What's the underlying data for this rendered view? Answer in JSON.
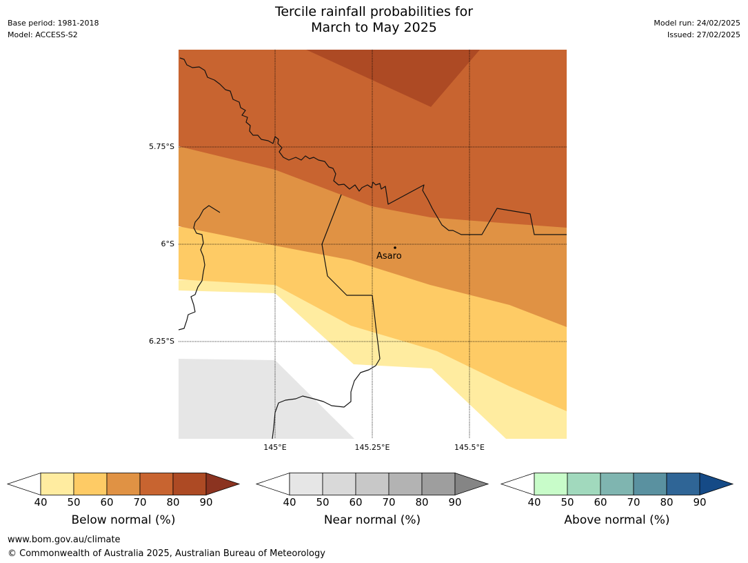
{
  "header": {
    "title_line1": "Tercile rainfall probabilities for",
    "title_line2": "March to May 2025",
    "base_period": "Base period: 1981-2018",
    "model": "Model: ACCESS-S2",
    "model_run": "Model run: 24/02/2025",
    "issued": "Issued: 27/02/2025"
  },
  "map": {
    "lat_labels": [
      "5.75°S",
      "6°S",
      "6.25°S"
    ],
    "lon_labels": [
      "145°E",
      "145.25°E",
      "145.5°E"
    ],
    "place_name": "Asaro",
    "colors": {
      "below_40_50": "#ffeca0",
      "below_50_60": "#fecb65",
      "below_60_70": "#e09244",
      "below_70_80": "#c86430",
      "below_80_90": "#ad4a24",
      "near_40_50": "#e6e6e6"
    }
  },
  "colorbars": [
    {
      "label": "Below normal (%)",
      "ticks": [
        "40",
        "50",
        "60",
        "70",
        "80",
        "90"
      ],
      "colors": [
        "#ffeca0",
        "#fecb65",
        "#e09244",
        "#c86430",
        "#ad4a24",
        "#8b3320"
      ]
    },
    {
      "label": "Near normal (%)",
      "ticks": [
        "40",
        "50",
        "60",
        "70",
        "80",
        "90"
      ],
      "colors": [
        "#e6e6e6",
        "#d9d9d9",
        "#c8c8c8",
        "#b3b3b3",
        "#9e9e9e",
        "#858585"
      ]
    },
    {
      "label": "Above normal (%)",
      "ticks": [
        "40",
        "50",
        "60",
        "70",
        "80",
        "90"
      ],
      "colors": [
        "#c8fcc9",
        "#a1d9bd",
        "#7fb5b0",
        "#5a91a0",
        "#2f6596",
        "#154a86"
      ]
    }
  ],
  "footer": {
    "url": "www.bom.gov.au/climate",
    "copyright": "© Commonwealth of Australia 2025, Australian Bureau of Meteorology"
  }
}
